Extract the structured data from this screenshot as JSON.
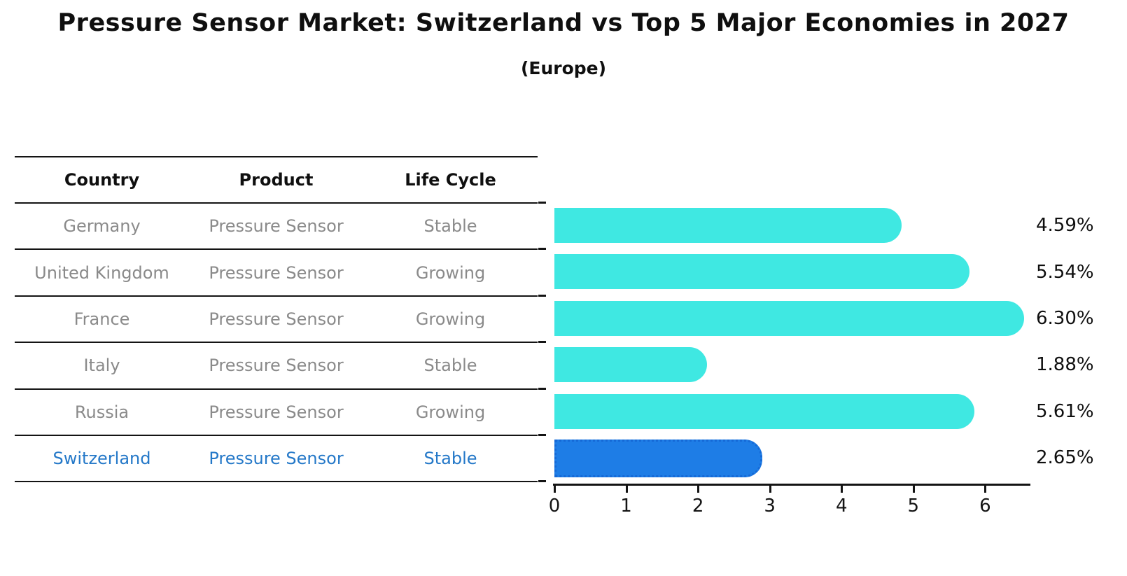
{
  "title": "Pressure Sensor Market: Switzerland vs Top 5 Major Economies in 2027",
  "subtitle": "(Europe)",
  "table": {
    "headers": [
      "Country",
      "Product",
      "Life Cycle"
    ],
    "rows": [
      {
        "country": "Germany",
        "product": "Pressure Sensor",
        "life_cycle": "Stable",
        "highlight": false
      },
      {
        "country": "United Kingdom",
        "product": "Pressure Sensor",
        "life_cycle": "Growing",
        "highlight": false
      },
      {
        "country": "France",
        "product": "Pressure Sensor",
        "life_cycle": "Growing",
        "highlight": false
      },
      {
        "country": "Italy",
        "product": "Pressure Sensor",
        "life_cycle": "Stable",
        "highlight": false
      },
      {
        "country": "Russia",
        "product": "Pressure Sensor",
        "life_cycle": "Growing",
        "highlight": false
      },
      {
        "country": "Switzerland",
        "product": "Pressure Sensor",
        "life_cycle": "Stable",
        "highlight": true
      }
    ]
  },
  "chart_data": {
    "type": "bar",
    "orientation": "horizontal",
    "title": "Pressure Sensor Market: Switzerland vs Top 5 Major Economies in 2027",
    "subtitle": "(Europe)",
    "categories": [
      "Germany",
      "United Kingdom",
      "France",
      "Italy",
      "Russia",
      "Switzerland"
    ],
    "values": [
      4.59,
      5.54,
      6.3,
      1.88,
      5.61,
      2.65
    ],
    "value_labels": [
      "4.59%",
      "5.54%",
      "6.30%",
      "1.88%",
      "5.61%",
      "2.65%"
    ],
    "xlabel": "",
    "ylabel": "",
    "xticks": [
      0,
      1,
      2,
      3,
      4,
      5,
      6
    ],
    "xlim": [
      0,
      6.63
    ],
    "grid": false,
    "legend": false,
    "highlight_index": 5,
    "bar_color": "#3FE8E2",
    "highlight_color": "#1E7DE6",
    "highlight_edge_color": "#1569D6"
  },
  "colors": {
    "row_text": "#8A8A8A",
    "highlight_text": "#2478C8",
    "line": "#141414",
    "label_text": "#0F0F0F"
  }
}
